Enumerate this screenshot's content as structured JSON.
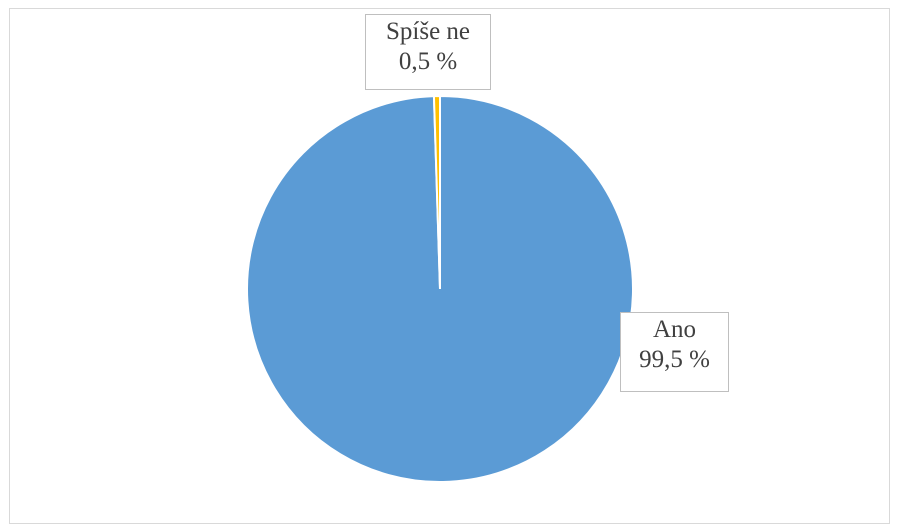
{
  "chart_data": {
    "type": "pie",
    "title": "",
    "slices": [
      {
        "label": "Ano",
        "value": 99.5,
        "value_label": "99,5 %",
        "color": "#5b9bd5"
      },
      {
        "label": "Spíše ne",
        "value": 0.5,
        "value_label": "0,5 %",
        "color": "#ffc000"
      }
    ],
    "legend": "none",
    "data_labels": "callout"
  }
}
